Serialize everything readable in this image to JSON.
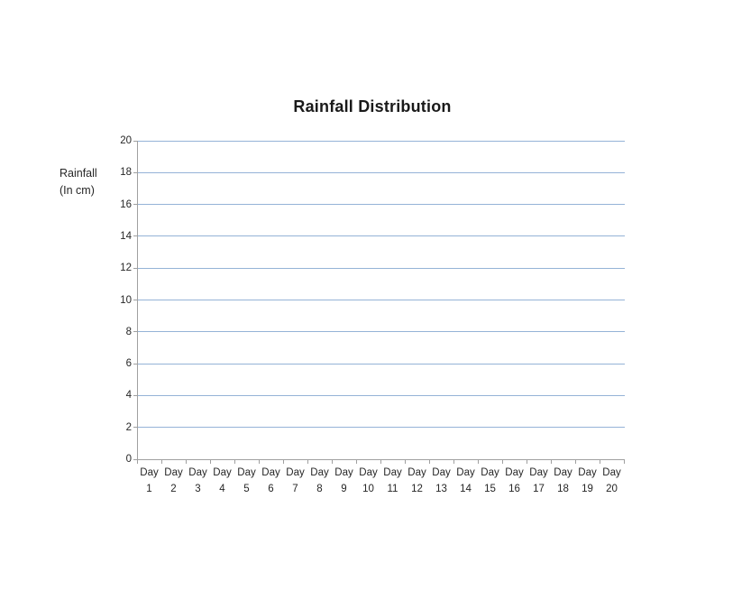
{
  "title": "Rainfall Distribution",
  "y_axis": {
    "label_line1": "Rainfall",
    "label_line2": "(In cm)",
    "ticks": [
      "20",
      "18",
      "16",
      "14",
      "12",
      "10",
      "8",
      "6",
      "4",
      "2",
      "0"
    ],
    "min": 0,
    "max": 20,
    "step": 2
  },
  "x_axis": {
    "ticks": [
      {
        "l1": "Day",
        "l2": "1"
      },
      {
        "l1": "Day",
        "l2": "2"
      },
      {
        "l1": "Day",
        "l2": "3"
      },
      {
        "l1": "Day",
        "l2": "4"
      },
      {
        "l1": "Day",
        "l2": "5"
      },
      {
        "l1": "Day",
        "l2": "6"
      },
      {
        "l1": "Day",
        "l2": "7"
      },
      {
        "l1": "Day",
        "l2": "8"
      },
      {
        "l1": "Day",
        "l2": "9"
      },
      {
        "l1": "Day",
        "l2": "10"
      },
      {
        "l1": "Day",
        "l2": "11"
      },
      {
        "l1": "Day",
        "l2": "12"
      },
      {
        "l1": "Day",
        "l2": "13"
      },
      {
        "l1": "Day",
        "l2": "14"
      },
      {
        "l1": "Day",
        "l2": "15"
      },
      {
        "l1": "Day",
        "l2": "16"
      },
      {
        "l1": "Day",
        "l2": "17"
      },
      {
        "l1": "Day",
        "l2": "18"
      },
      {
        "l1": "Day",
        "l2": "19"
      },
      {
        "l1": "Day",
        "l2": "20"
      }
    ]
  },
  "colors": {
    "gridline": "#95b3d7",
    "axis": "#a0a0a0",
    "text": "#262626",
    "title": "#1a1a1a",
    "background": "#ffffff"
  },
  "chart_data": {
    "type": "bar",
    "title": "Rainfall Distribution",
    "xlabel": "",
    "ylabel": "Rainfall (In cm)",
    "categories": [
      "Day 1",
      "Day 2",
      "Day 3",
      "Day 4",
      "Day 5",
      "Day 6",
      "Day 7",
      "Day 8",
      "Day 9",
      "Day 10",
      "Day 11",
      "Day 12",
      "Day 13",
      "Day 14",
      "Day 15",
      "Day 16",
      "Day 17",
      "Day 18",
      "Day 19",
      "Day 20"
    ],
    "series": [],
    "values": [],
    "ylim": [
      0,
      20
    ],
    "ytick_step": 2,
    "grid": true,
    "legend": false
  }
}
